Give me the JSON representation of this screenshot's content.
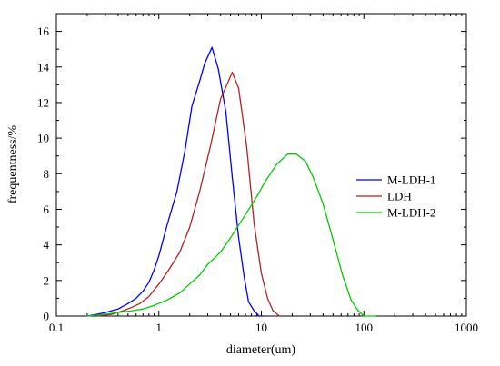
{
  "chart_data": {
    "type": "line",
    "xscale": "log",
    "xlabel": "diameter(um)",
    "ylabel": "frequentness/%",
    "xlim": [
      0.1,
      1000
    ],
    "ylim": [
      0,
      17
    ],
    "xticks": [
      {
        "value": 0.1,
        "label": "0.1"
      },
      {
        "value": 1,
        "label": "1"
      },
      {
        "value": 10,
        "label": "10"
      },
      {
        "value": 100,
        "label": "100"
      },
      {
        "value": 1000,
        "label": "1000"
      }
    ],
    "yticks": [
      {
        "value": 0,
        "label": "0"
      },
      {
        "value": 2,
        "label": "2"
      },
      {
        "value": 4,
        "label": "4"
      },
      {
        "value": 6,
        "label": "6"
      },
      {
        "value": 8,
        "label": "8"
      },
      {
        "value": 10,
        "label": "10"
      },
      {
        "value": 12,
        "label": "12"
      },
      {
        "value": 14,
        "label": "14"
      },
      {
        "value": 16,
        "label": "16"
      }
    ],
    "grid": false,
    "legend_position": "right",
    "series": [
      {
        "name": "M-LDH-1",
        "color": "#0000ff",
        "points": [
          [
            0.2,
            0.0
          ],
          [
            0.25,
            0.1
          ],
          [
            0.3,
            0.2
          ],
          [
            0.4,
            0.4
          ],
          [
            0.5,
            0.7
          ],
          [
            0.6,
            1.0
          ],
          [
            0.7,
            1.4
          ],
          [
            0.8,
            1.9
          ],
          [
            0.9,
            2.6
          ],
          [
            1.0,
            3.4
          ],
          [
            1.2,
            5.1
          ],
          [
            1.5,
            7.0
          ],
          [
            1.8,
            9.3
          ],
          [
            2.1,
            11.8
          ],
          [
            2.5,
            13.2
          ],
          [
            2.8,
            14.2
          ],
          [
            3.3,
            15.1
          ],
          [
            3.8,
            13.9
          ],
          [
            4.5,
            11.5
          ],
          [
            5.2,
            7.8
          ],
          [
            6.0,
            4.4
          ],
          [
            6.8,
            2.2
          ],
          [
            7.5,
            0.8
          ],
          [
            8.5,
            0.3
          ],
          [
            9.5,
            0.0
          ],
          [
            10.5,
            0.0
          ]
        ]
      },
      {
        "name": "LDH",
        "color": "#b22222",
        "points": [
          [
            0.25,
            0.0
          ],
          [
            0.35,
            0.1
          ],
          [
            0.45,
            0.3
          ],
          [
            0.55,
            0.5
          ],
          [
            0.65,
            0.7
          ],
          [
            0.8,
            1.1
          ],
          [
            1.0,
            1.8
          ],
          [
            1.25,
            2.6
          ],
          [
            1.6,
            3.6
          ],
          [
            2.0,
            5.0
          ],
          [
            2.5,
            7.0
          ],
          [
            3.2,
            9.6
          ],
          [
            4.0,
            12.2
          ],
          [
            4.6,
            13.0
          ],
          [
            5.2,
            13.7
          ],
          [
            6.0,
            12.8
          ],
          [
            7.2,
            9.5
          ],
          [
            8.5,
            5.2
          ],
          [
            10.0,
            2.4
          ],
          [
            11.5,
            1.0
          ],
          [
            13.0,
            0.3
          ],
          [
            15.0,
            0.0
          ]
        ]
      },
      {
        "name": "M-LDH-2",
        "color": "#00cc00",
        "points": [
          [
            0.2,
            0.0
          ],
          [
            0.3,
            0.1
          ],
          [
            0.4,
            0.2
          ],
          [
            0.55,
            0.3
          ],
          [
            0.7,
            0.4
          ],
          [
            0.9,
            0.6
          ],
          [
            1.2,
            0.9
          ],
          [
            1.6,
            1.3
          ],
          [
            2.0,
            1.8
          ],
          [
            2.5,
            2.3
          ],
          [
            3.0,
            2.9
          ],
          [
            4.0,
            3.6
          ],
          [
            5.0,
            4.4
          ],
          [
            7.0,
            5.7
          ],
          [
            9.0,
            6.7
          ],
          [
            11.0,
            7.6
          ],
          [
            14.0,
            8.5
          ],
          [
            18.0,
            9.1
          ],
          [
            22.0,
            9.1
          ],
          [
            27.0,
            8.7
          ],
          [
            32.0,
            7.8
          ],
          [
            40.0,
            6.3
          ],
          [
            50.0,
            4.3
          ],
          [
            62.0,
            2.3
          ],
          [
            75.0,
            0.9
          ],
          [
            88.0,
            0.3
          ],
          [
            100.0,
            0.0
          ],
          [
            130.0,
            0.0
          ]
        ]
      }
    ]
  }
}
